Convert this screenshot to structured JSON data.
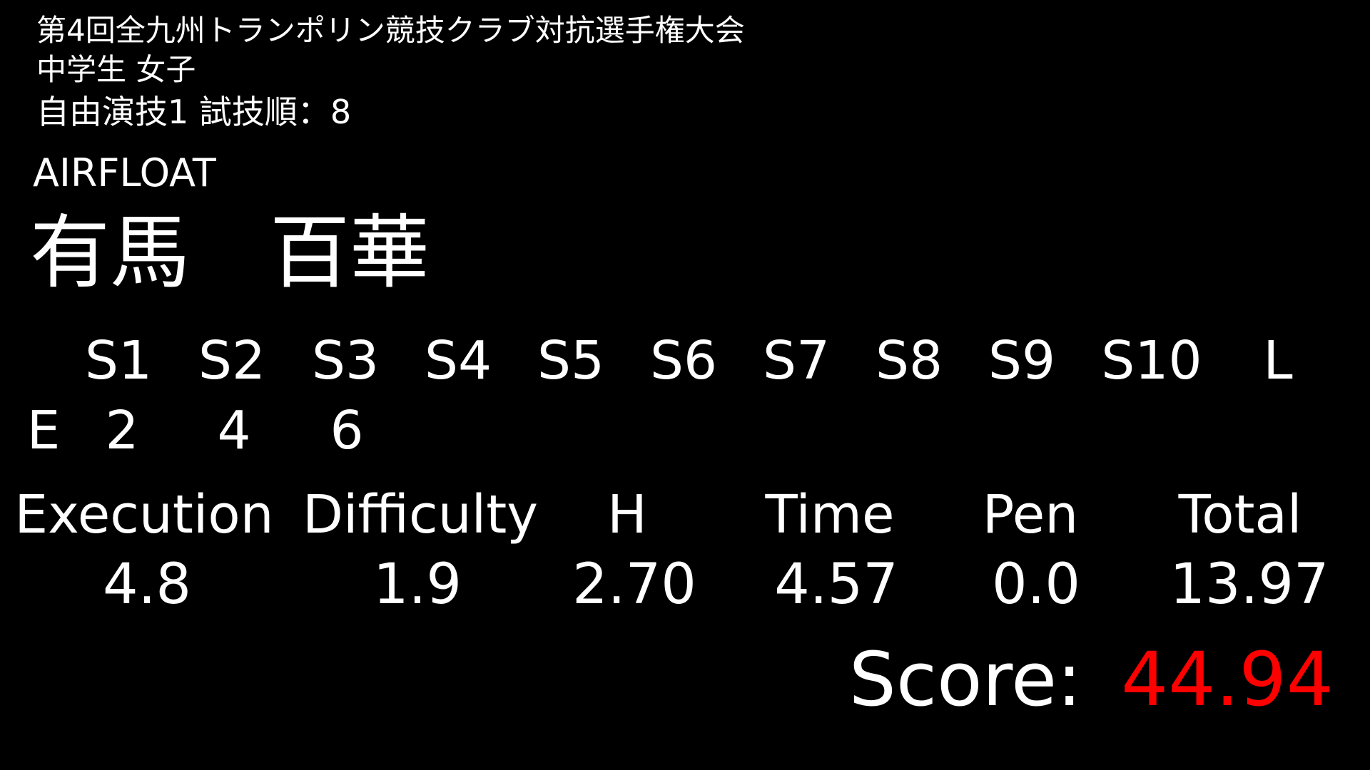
{
  "header": {
    "competition": "第4回全九州トランポリン競技クラブ対抗選手権大会",
    "category": "中学生 女子",
    "routine": "自由演技1 試技順：8"
  },
  "athlete": {
    "club": "AIRFLOAT",
    "name": "有馬　百華"
  },
  "judges": {
    "headers": [
      "S1",
      "S2",
      "S3",
      "S4",
      "S5",
      "S6",
      "S7",
      "S8",
      "S9",
      "S10",
      "L"
    ],
    "row_label": "E",
    "values": [
      "2",
      "4",
      "6"
    ]
  },
  "scores": {
    "labels": [
      "Execution",
      "Difficulty",
      "H",
      "Time",
      "Pen",
      "Total"
    ],
    "values": [
      "4.8",
      "1.9",
      "2.70",
      "4.57",
      "0.0",
      "13.97"
    ]
  },
  "final": {
    "label": "Score:",
    "value": "44.94",
    "value_color": "#ff0000"
  }
}
